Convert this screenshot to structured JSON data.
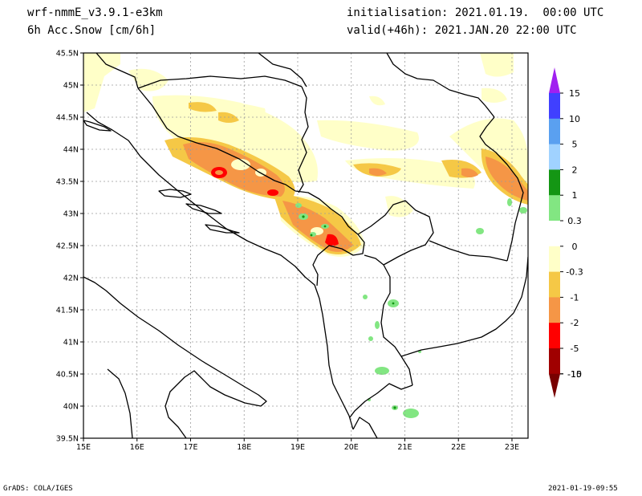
{
  "header": {
    "model": "wrf-nmmE_v3.9.1-e3km",
    "field": "6h Acc.Snow [cm/6h]",
    "init": "initialisation: 2021.01.19.  00:00 UTC",
    "valid": "valid(+46h): 2021.JAN.20 22:00 UTC"
  },
  "footer": {
    "left": "GrADS: COLA/IGES",
    "right": "2021-01-19-09:55"
  },
  "map": {
    "lon_range": [
      15,
      23.3
    ],
    "lat_range": [
      39.5,
      45.5
    ],
    "lon_ticks": [
      "15E",
      "16E",
      "17E",
      "18E",
      "19E",
      "20E",
      "21E",
      "22E",
      "23E"
    ],
    "lat_ticks": [
      "45.5N",
      "45N",
      "44.5N",
      "44N",
      "43.5N",
      "43N",
      "42.5N",
      "42N",
      "41.5N",
      "41N",
      "40.5N",
      "40N",
      "39.5N"
    ],
    "grid": true,
    "border_color": "#000000",
    "grid_color": "#9a9a9a"
  },
  "colorbar": {
    "labels": [
      "15",
      "10",
      "5",
      "2",
      "1",
      "0.3",
      "0",
      "-0.3",
      "-1",
      "-2",
      "-5",
      "-10",
      "-15"
    ],
    "colors": [
      "#a020f0",
      "#4040ff",
      "#5aa0f0",
      "#a0d2ff",
      "#149614",
      "#82e682",
      "#ffffff",
      "#ffffc8",
      "#f5c846",
      "#f59646",
      "#ff0000",
      "#a00000",
      "#780000"
    ]
  },
  "snow_colors": {
    "light": "#ffffc8",
    "yellow": "#f5c846",
    "orange": "#f59646",
    "red": "#ff0000",
    "green": "#82e682"
  }
}
